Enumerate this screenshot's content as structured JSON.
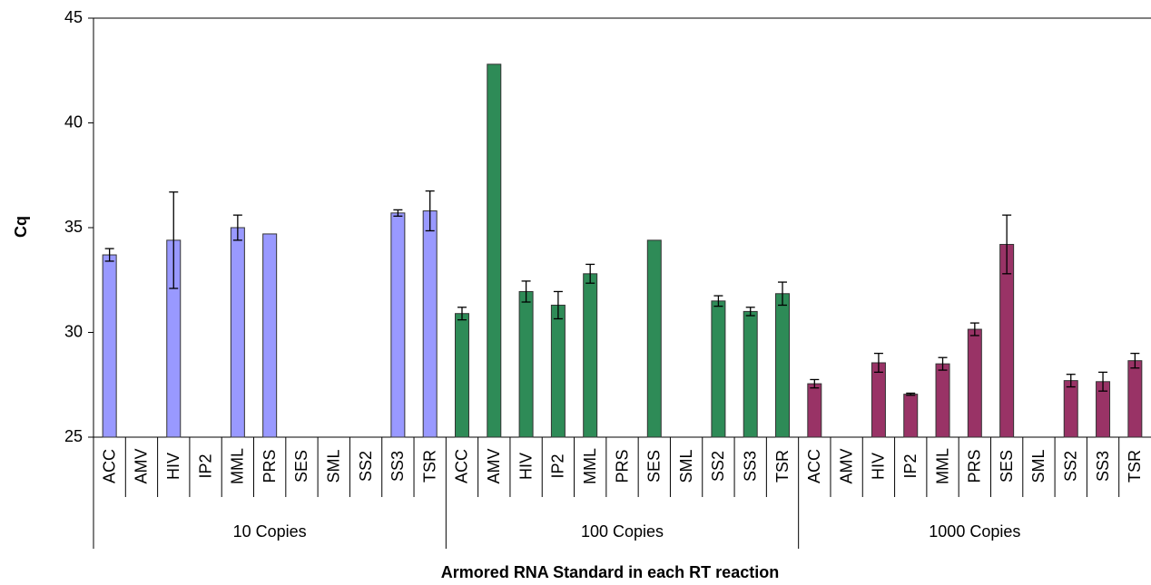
{
  "chart_data": {
    "type": "bar",
    "x_label": "Armored RNA Standard in each RT reaction",
    "y_label": "Cq",
    "categories": [
      "ACC",
      "AMV",
      "HIV",
      "IP2",
      "MML",
      "PRS",
      "SES",
      "SML",
      "SS2",
      "SS3",
      "TSR"
    ],
    "groups": [
      {
        "name": "10 Copies",
        "color": "#9999ff",
        "values": [
          33.7,
          25,
          34.4,
          25,
          35.0,
          34.7,
          25,
          25,
          25,
          35.7,
          35.8
        ],
        "errors": [
          0.3,
          null,
          2.3,
          null,
          0.6,
          null,
          null,
          null,
          null,
          0.15,
          0.95
        ]
      },
      {
        "name": "100 Copies",
        "color": "#2e8b57",
        "values": [
          30.9,
          42.8,
          31.95,
          31.3,
          32.8,
          25,
          34.4,
          25,
          31.5,
          31.0,
          31.85
        ],
        "errors": [
          0.3,
          null,
          0.5,
          0.65,
          0.45,
          null,
          null,
          null,
          0.25,
          0.2,
          0.55
        ]
      },
      {
        "name": "1000 Copies",
        "color": "#993366",
        "values": [
          27.55,
          25,
          28.55,
          27.05,
          28.5,
          30.15,
          34.2,
          25,
          27.7,
          27.65,
          28.65
        ],
        "errors": [
          0.2,
          null,
          0.45,
          0.05,
          0.3,
          0.3,
          1.4,
          null,
          0.3,
          0.45,
          0.35
        ]
      }
    ],
    "ylim": [
      25,
      45
    ],
    "yticks": [
      25,
      30,
      35,
      40,
      45
    ]
  }
}
